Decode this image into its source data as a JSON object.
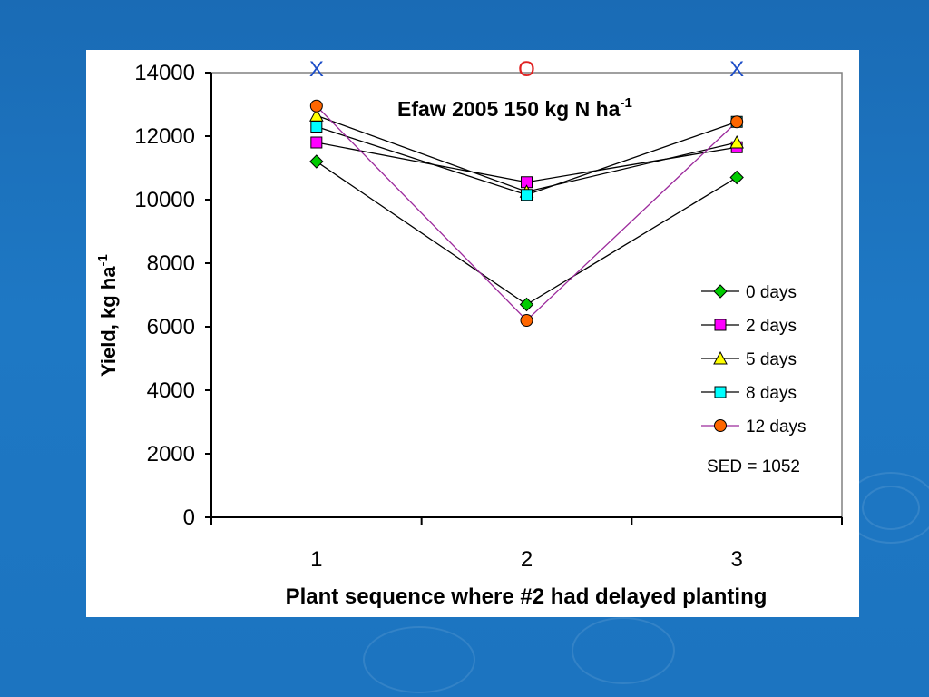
{
  "slide": {
    "background_color": "#1c74c0"
  },
  "chart_data": {
    "type": "line",
    "title": "Efaw 2005 150 kg N ha",
    "title_superscript": "-1",
    "xlabel": "Plant sequence where #2 had delayed planting",
    "ylabel": "Yield, kg ha",
    "ylabel_superscript": "-1",
    "categories": [
      "1",
      "2",
      "3"
    ],
    "ylim": [
      0,
      14000
    ],
    "yticks": [
      "0",
      "2000",
      "4000",
      "6000",
      "8000",
      "10000",
      "12000",
      "14000"
    ],
    "grid": false,
    "legend_position": "right",
    "series": [
      {
        "name": "0 days",
        "values": [
          11200,
          6700,
          10700
        ],
        "marker": "diamond",
        "color": "#00cc00",
        "line_color": "#000000"
      },
      {
        "name": "2 days",
        "values": [
          11800,
          10550,
          11650
        ],
        "marker": "square",
        "color": "#ff00ff",
        "line_color": "#000000"
      },
      {
        "name": "5 days",
        "values": [
          12650,
          10250,
          11800
        ],
        "marker": "triangle",
        "color": "#ffff00",
        "line_color": "#000000"
      },
      {
        "name": "8 days",
        "values": [
          12300,
          10150,
          12450
        ],
        "marker": "square",
        "color": "#00ffff",
        "line_color": "#000000"
      },
      {
        "name": "12 days",
        "values": [
          12950,
          6200,
          12450
        ],
        "marker": "circle",
        "color": "#ff6600",
        "line_color": "#9c2a9c"
      }
    ],
    "annotations": [
      {
        "text": "X",
        "category": "1",
        "color": "#1f4fc8"
      },
      {
        "text": "O",
        "category": "2",
        "color": "#e02020"
      },
      {
        "text": "X",
        "category": "3",
        "color": "#1f4fc8"
      }
    ],
    "sed_text": "SED = 1052"
  }
}
